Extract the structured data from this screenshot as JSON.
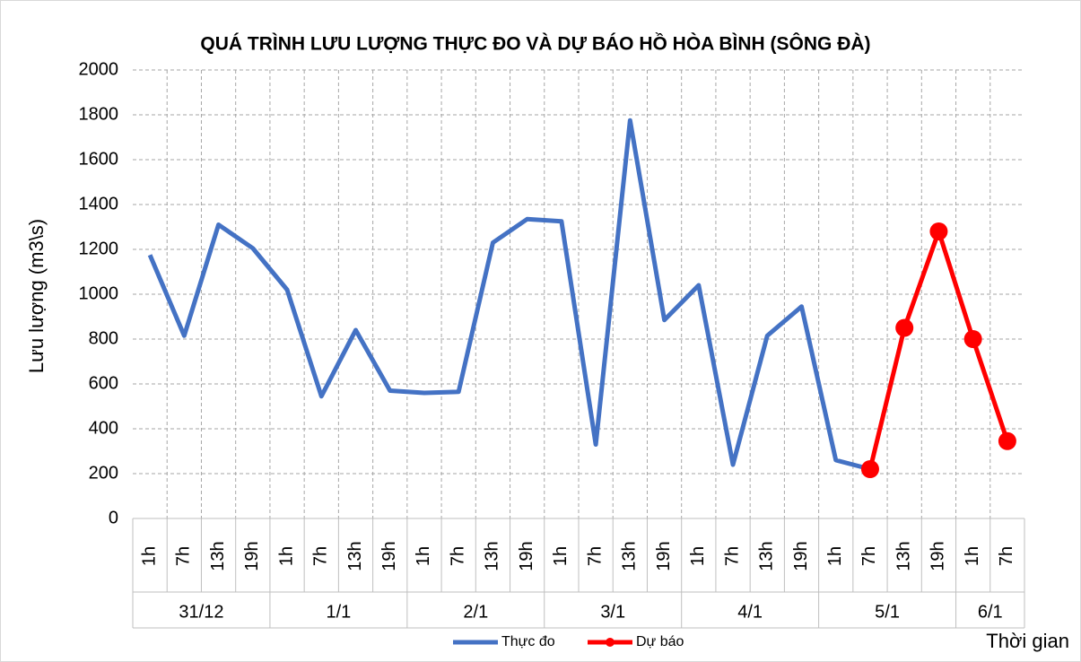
{
  "chart_data": {
    "type": "line",
    "title": "QUÁ TRÌNH LƯU LƯỢNG THỰC ĐO VÀ DỰ BÁO HỒ HÒA BÌNH (SÔNG ĐÀ)",
    "y_label": "Lưu lượng (m3\\s)",
    "x_label": "Thời gian",
    "groups": [
      {
        "label": "31/12",
        "categories": [
          "1h",
          "7h",
          "13h",
          "19h"
        ]
      },
      {
        "label": "1/1",
        "categories": [
          "1h",
          "7h",
          "13h",
          "19h"
        ]
      },
      {
        "label": "2/1",
        "categories": [
          "1h",
          "7h",
          "13h",
          "19h"
        ]
      },
      {
        "label": "3/1",
        "categories": [
          "1h",
          "7h",
          "13h",
          "19h"
        ]
      },
      {
        "label": "4/1",
        "categories": [
          "1h",
          "7h",
          "13h",
          "19h"
        ]
      },
      {
        "label": "5/1",
        "categories": [
          "1h",
          "7h",
          "13h",
          "19h"
        ]
      },
      {
        "label": "6/1",
        "categories": [
          "1h",
          "7h"
        ]
      }
    ],
    "series": [
      {
        "name": "Thực đo",
        "color": "#4472c4",
        "markers": false,
        "values": [
          1175,
          815,
          1310,
          1205,
          1020,
          545,
          840,
          570,
          560,
          565,
          1230,
          1335,
          1325,
          330,
          1775,
          885,
          1040,
          240,
          815,
          945,
          260,
          220,
          null,
          null,
          null,
          null
        ]
      },
      {
        "name": "Dự báo",
        "color": "#ff0000",
        "markers": true,
        "values": [
          null,
          null,
          null,
          null,
          null,
          null,
          null,
          null,
          null,
          null,
          null,
          null,
          null,
          null,
          null,
          null,
          null,
          null,
          null,
          null,
          null,
          220,
          850,
          1280,
          800,
          345
        ]
      }
    ],
    "ylim": [
      0,
      2000
    ],
    "yticks": [
      0,
      200,
      400,
      600,
      800,
      1000,
      1200,
      1400,
      1600,
      1800,
      2000
    ],
    "grid": true
  }
}
